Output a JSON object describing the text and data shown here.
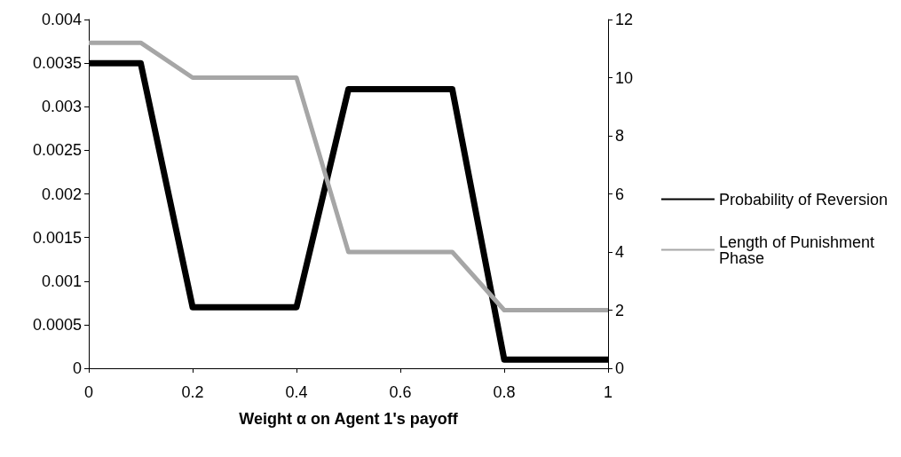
{
  "chart_data": {
    "type": "line",
    "xlabel": "Weight α on Agent 1's payoff",
    "x": [
      0,
      0.1,
      0.2,
      0.3,
      0.4,
      0.5,
      0.6,
      0.7,
      0.8,
      0.9,
      1
    ],
    "xlim": [
      0,
      1
    ],
    "xticks": [
      0,
      0.2,
      0.4,
      0.6,
      0.8,
      1
    ],
    "ylim": [
      0,
      0.004
    ],
    "yticks": [
      0,
      0.0005,
      0.001,
      0.0015,
      0.002,
      0.0025,
      0.003,
      0.0035,
      0.004
    ],
    "y2lim": [
      0,
      12
    ],
    "y2ticks": [
      0,
      2,
      4,
      6,
      8,
      10,
      12
    ],
    "series": [
      {
        "name": "Probability of Reversion",
        "color": "#000000",
        "values": [
          0.0035,
          0.0035,
          0.0007,
          0.0007,
          0.0007,
          0.0032,
          0.0032,
          0.0032,
          0.0001,
          0.0001,
          0.0001
        ]
      },
      {
        "name": "Length of Punishment Phase",
        "color": "#a6a6a6",
        "axis": "y2",
        "values": [
          11.2,
          11.2,
          10,
          10,
          10,
          4,
          4,
          4,
          2,
          2,
          2
        ]
      }
    ],
    "grid": false,
    "legend": "right",
    "marker": "none",
    "line_style": "solid"
  }
}
